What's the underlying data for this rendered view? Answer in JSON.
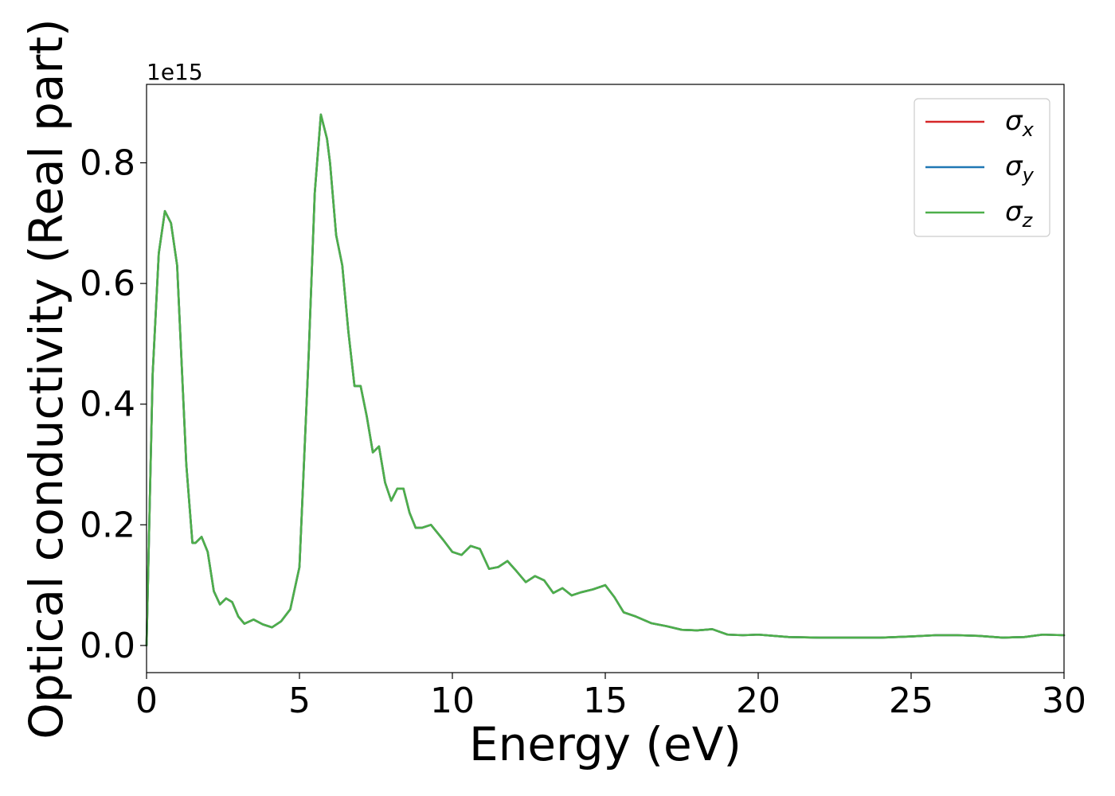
{
  "chart_data": {
    "type": "line",
    "xlabel": "Energy (eV)",
    "ylabel": "Optical conductivity (Real part)",
    "y_offset_text": "1e15",
    "xlim": [
      0,
      30
    ],
    "ylim": [
      -0.045,
      0.93
    ],
    "x_ticks": [
      0,
      5,
      10,
      15,
      20,
      25,
      30
    ],
    "x_tick_labels": [
      "0",
      "5",
      "10",
      "15",
      "20",
      "25",
      "30"
    ],
    "y_ticks": [
      0.0,
      0.2,
      0.4,
      0.6,
      0.8
    ],
    "y_tick_labels": [
      "0.0",
      "0.2",
      "0.4",
      "0.6",
      "0.8"
    ],
    "grid": false,
    "legend_position": "top-right",
    "x": [
      0,
      0.2,
      0.4,
      0.6,
      0.8,
      1.0,
      1.1,
      1.3,
      1.5,
      1.6,
      1.8,
      2.0,
      2.2,
      2.4,
      2.6,
      2.8,
      3.0,
      3.2,
      3.5,
      3.8,
      4.1,
      4.4,
      4.7,
      5.0,
      5.3,
      5.5,
      5.7,
      5.9,
      6.0,
      6.2,
      6.4,
      6.6,
      6.8,
      7.0,
      7.2,
      7.4,
      7.6,
      7.8,
      8.0,
      8.2,
      8.4,
      8.6,
      8.8,
      9.0,
      9.3,
      9.7,
      10.0,
      10.3,
      10.6,
      10.9,
      11.2,
      11.5,
      11.8,
      12.1,
      12.4,
      12.7,
      13.0,
      13.3,
      13.6,
      13.9,
      14.2,
      14.6,
      15.0,
      15.3,
      15.6,
      16.0,
      16.5,
      17.0,
      17.5,
      18.0,
      18.5,
      19.0,
      19.5,
      20.0,
      21.0,
      22.0,
      23.0,
      24.0,
      25.0,
      25.8,
      26.5,
      27.2,
      28.0,
      28.7,
      29.3,
      30.0
    ],
    "series": [
      {
        "name": "σx",
        "color": "#d62728",
        "values": [
          0.0,
          0.45,
          0.65,
          0.72,
          0.7,
          0.63,
          0.52,
          0.3,
          0.17,
          0.17,
          0.18,
          0.155,
          0.09,
          0.068,
          0.078,
          0.072,
          0.048,
          0.036,
          0.043,
          0.035,
          0.03,
          0.04,
          0.06,
          0.13,
          0.48,
          0.75,
          0.88,
          0.84,
          0.8,
          0.68,
          0.63,
          0.52,
          0.43,
          0.43,
          0.38,
          0.32,
          0.33,
          0.27,
          0.24,
          0.26,
          0.26,
          0.22,
          0.195,
          0.195,
          0.2,
          0.175,
          0.155,
          0.15,
          0.165,
          0.16,
          0.127,
          0.13,
          0.14,
          0.123,
          0.105,
          0.115,
          0.108,
          0.087,
          0.095,
          0.083,
          0.088,
          0.093,
          0.1,
          0.08,
          0.055,
          0.048,
          0.037,
          0.032,
          0.026,
          0.025,
          0.027,
          0.018,
          0.017,
          0.018,
          0.014,
          0.013,
          0.013,
          0.013,
          0.015,
          0.017,
          0.017,
          0.016,
          0.013,
          0.014,
          0.018,
          0.017
        ]
      },
      {
        "name": "σy",
        "color": "#1f77b4",
        "values": [
          0.0,
          0.45,
          0.65,
          0.72,
          0.7,
          0.63,
          0.52,
          0.3,
          0.17,
          0.17,
          0.18,
          0.155,
          0.09,
          0.068,
          0.078,
          0.072,
          0.048,
          0.036,
          0.043,
          0.035,
          0.03,
          0.04,
          0.06,
          0.13,
          0.48,
          0.75,
          0.88,
          0.84,
          0.8,
          0.68,
          0.63,
          0.52,
          0.43,
          0.43,
          0.38,
          0.32,
          0.33,
          0.27,
          0.24,
          0.26,
          0.26,
          0.22,
          0.195,
          0.195,
          0.2,
          0.175,
          0.155,
          0.15,
          0.165,
          0.16,
          0.127,
          0.13,
          0.14,
          0.123,
          0.105,
          0.115,
          0.108,
          0.087,
          0.095,
          0.083,
          0.088,
          0.093,
          0.1,
          0.08,
          0.055,
          0.048,
          0.037,
          0.032,
          0.026,
          0.025,
          0.027,
          0.018,
          0.017,
          0.018,
          0.014,
          0.013,
          0.013,
          0.013,
          0.015,
          0.017,
          0.017,
          0.016,
          0.013,
          0.014,
          0.018,
          0.017
        ]
      },
      {
        "name": "σz",
        "color": "#4daf4a",
        "values": [
          0.0,
          0.45,
          0.65,
          0.72,
          0.7,
          0.63,
          0.52,
          0.3,
          0.17,
          0.17,
          0.18,
          0.155,
          0.09,
          0.068,
          0.078,
          0.072,
          0.048,
          0.036,
          0.043,
          0.035,
          0.03,
          0.04,
          0.06,
          0.13,
          0.48,
          0.75,
          0.88,
          0.84,
          0.8,
          0.68,
          0.63,
          0.52,
          0.43,
          0.43,
          0.38,
          0.32,
          0.33,
          0.27,
          0.24,
          0.26,
          0.26,
          0.22,
          0.195,
          0.195,
          0.2,
          0.175,
          0.155,
          0.15,
          0.165,
          0.16,
          0.127,
          0.13,
          0.14,
          0.123,
          0.105,
          0.115,
          0.108,
          0.087,
          0.095,
          0.083,
          0.088,
          0.093,
          0.1,
          0.08,
          0.055,
          0.048,
          0.037,
          0.032,
          0.026,
          0.025,
          0.027,
          0.018,
          0.017,
          0.018,
          0.014,
          0.013,
          0.013,
          0.013,
          0.015,
          0.017,
          0.017,
          0.016,
          0.013,
          0.014,
          0.018,
          0.017
        ]
      }
    ],
    "legend": [
      {
        "symbol": "σ",
        "sub": "x",
        "color": "#d62728"
      },
      {
        "symbol": "σ",
        "sub": "y",
        "color": "#1f77b4"
      },
      {
        "symbol": "σ",
        "sub": "z",
        "color": "#4daf4a"
      }
    ]
  }
}
